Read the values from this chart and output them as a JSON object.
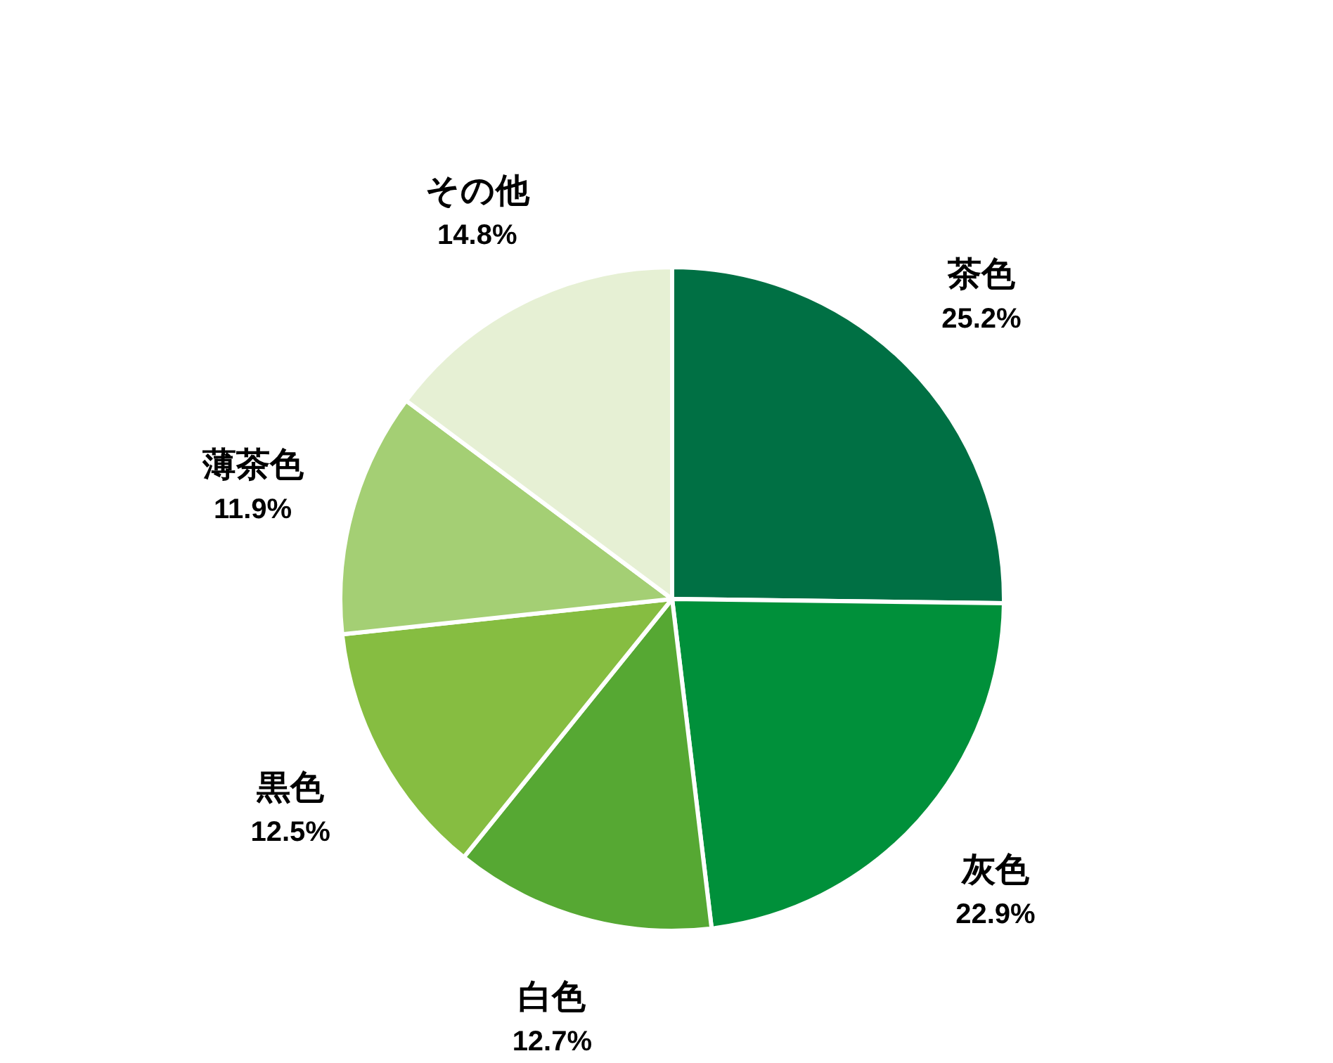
{
  "chart_data": {
    "type": "pie",
    "categories": [
      "茶色",
      "灰色",
      "白色",
      "黒色",
      "薄茶色",
      "その他"
    ],
    "values": [
      25.2,
      22.9,
      12.7,
      12.5,
      11.9,
      14.8
    ],
    "value_labels": [
      "25.2%",
      "22.9%",
      "12.7%",
      "12.5%",
      "11.9%",
      "14.8%"
    ],
    "colors": [
      "#007044",
      "#00903a",
      "#56a833",
      "#86bd41",
      "#a4cf74",
      "#e6f0d4"
    ]
  }
}
